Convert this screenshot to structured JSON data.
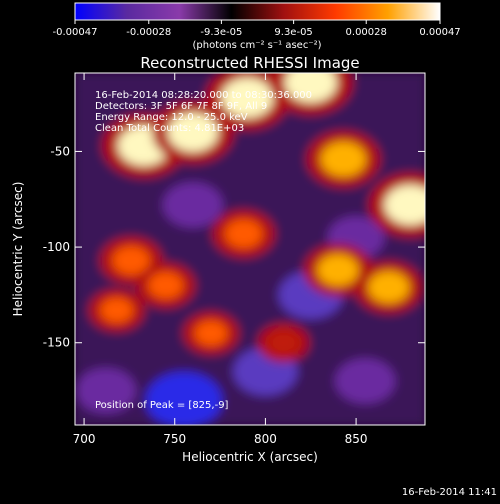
{
  "chart_data": {
    "type": "heatmap",
    "title": "Reconstructed RHESSI Image",
    "colorbar": {
      "ticks": [
        "-0.00047",
        "-0.00028",
        "-9.3e-05",
        "9.3e-05",
        "0.00028",
        "0.00047"
      ],
      "range": [
        -0.00047,
        0.00047
      ],
      "unit_label": "(photons cm⁻² s⁻¹ asec⁻²)",
      "colors": [
        "#0000ff",
        "#5a2aa0",
        "#8a3aaa",
        "#000000",
        "#a01010",
        "#ff3a00",
        "#ffa000",
        "#ffffff"
      ]
    },
    "xlabel": "Heliocentric X (arcsec)",
    "ylabel": "Heliocentric Y (arcsec)",
    "xlim": [
      695,
      888
    ],
    "ylim": [
      -193,
      -9
    ],
    "x_ticks": [
      700,
      750,
      800,
      850
    ],
    "y_ticks": [
      -50,
      -100,
      -150
    ],
    "annotations": [
      "16-Feb-2014 08:28:20.000 to 08:30:36.000",
      "Detectors: 3F 5F 6F 7F 8F 9F, All 9",
      "Energy Range: 12.0 - 25.0 keV",
      "Clean     Total Counts: 4.81E+03"
    ],
    "peak_text": "Position of Peak = [825,-9]",
    "timestamp": "16-Feb-2014 11:41",
    "bright_regions": [
      {
        "x": 733,
        "y": -47,
        "value": 0.00047
      },
      {
        "x": 760,
        "y": -40,
        "value": 0.00045
      },
      {
        "x": 790,
        "y": -22,
        "value": 0.00047
      },
      {
        "x": 825,
        "y": -14,
        "value": 0.00047
      },
      {
        "x": 843,
        "y": -54,
        "value": 0.00038
      },
      {
        "x": 880,
        "y": -78,
        "value": 0.00047
      },
      {
        "x": 788,
        "y": -93,
        "value": 0.00028
      },
      {
        "x": 840,
        "y": -112,
        "value": 0.00033
      },
      {
        "x": 868,
        "y": -121,
        "value": 0.00033
      },
      {
        "x": 726,
        "y": -107,
        "value": 0.00028
      },
      {
        "x": 745,
        "y": -120,
        "value": 0.00025
      },
      {
        "x": 718,
        "y": -133,
        "value": 0.00022
      },
      {
        "x": 770,
        "y": -145,
        "value": 0.00022
      },
      {
        "x": 810,
        "y": -150,
        "value": 0.00018
      }
    ],
    "dark_regions": [
      {
        "x": 755,
        "y": -180,
        "value": -0.00047
      },
      {
        "x": 800,
        "y": -165,
        "value": -0.00033
      },
      {
        "x": 825,
        "y": -125,
        "value": -0.00033
      },
      {
        "x": 855,
        "y": -170,
        "value": -0.00028
      },
      {
        "x": 712,
        "y": -175,
        "value": -0.00028
      },
      {
        "x": 760,
        "y": -78,
        "value": -0.00028
      },
      {
        "x": 850,
        "y": -95,
        "value": -0.00024
      }
    ]
  }
}
